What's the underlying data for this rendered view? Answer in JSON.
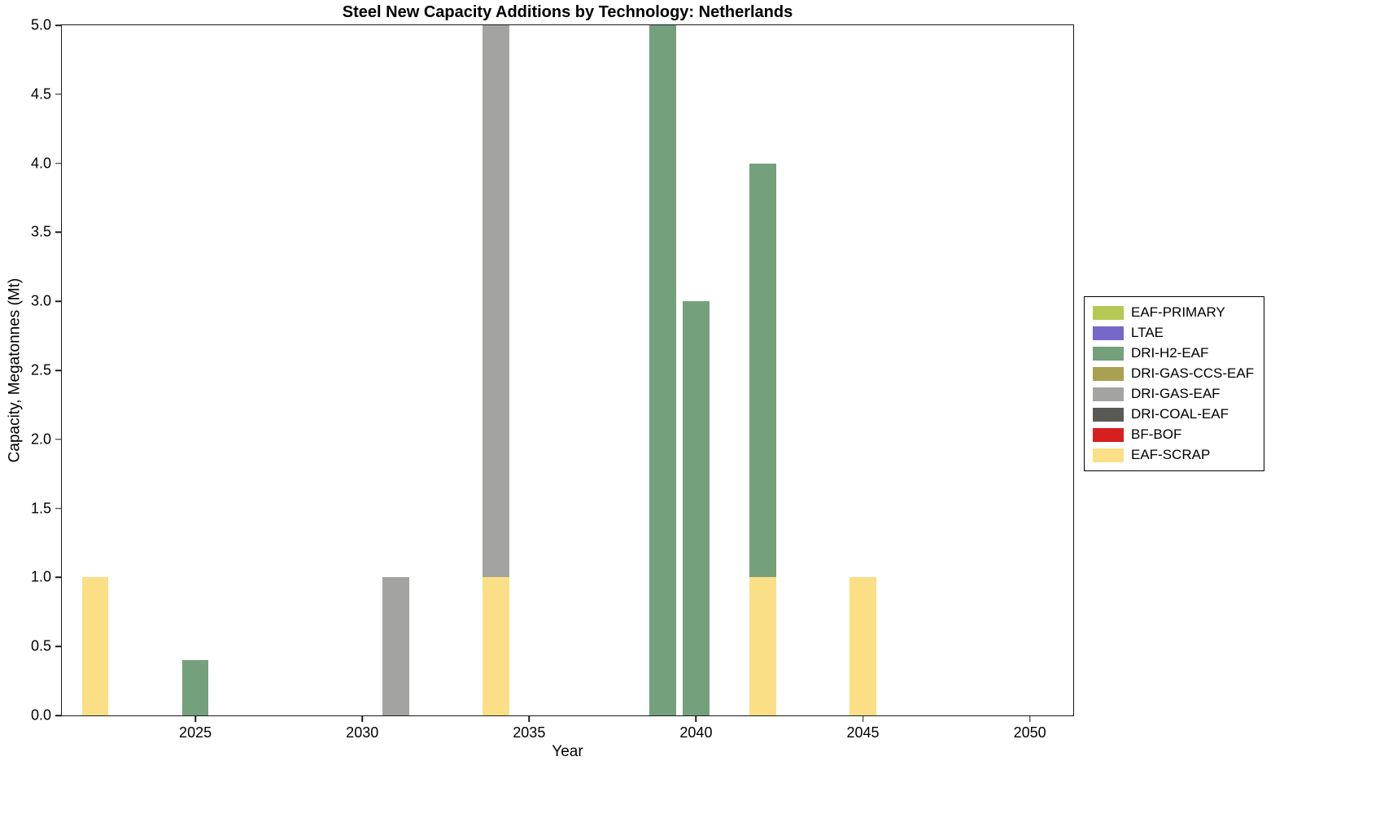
{
  "chart_data": {
    "type": "bar",
    "stacked": true,
    "title": "Steel New Capacity Additions by Technology: Netherlands",
    "xlabel": "Year",
    "ylabel": "Capacity, Megatonnes (Mt)",
    "xlim": [
      2021,
      2051.3
    ],
    "ylim": [
      0,
      5
    ],
    "bar_width_years": 0.8,
    "grid": false,
    "legend_position": "outside-right",
    "xticks": [
      2025,
      2030,
      2035,
      2040,
      2045,
      2050
    ],
    "xtick_labels": [
      "2025",
      "2030",
      "2035",
      "2040",
      "2045",
      "2050"
    ],
    "yticks": [
      0,
      0.5,
      1,
      1.5,
      2,
      2.5,
      3,
      3.5,
      4,
      4.5,
      5
    ],
    "ytick_labels": [
      "0.0",
      "0.5",
      "1.0",
      "1.5",
      "2.0",
      "2.5",
      "3.0",
      "3.5",
      "4.0",
      "4.5",
      "5.0"
    ],
    "legend": [
      {
        "label": "EAF-PRIMARY",
        "color": "#b6c954"
      },
      {
        "label": "LTAE",
        "color": "#7568c8"
      },
      {
        "label": "DRI-H2-EAF",
        "color": "#74a07c"
      },
      {
        "label": "DRI-GAS-CCS-EAF",
        "color": "#a9a052"
      },
      {
        "label": "DRI-GAS-EAF",
        "color": "#a3a3a1"
      },
      {
        "label": "DRI-COAL-EAF",
        "color": "#595955"
      },
      {
        "label": "BF-BOF",
        "color": "#d62020"
      },
      {
        "label": "EAF-SCRAP",
        "color": "#fbdf87"
      }
    ],
    "bars": [
      {
        "year": 2022,
        "segments": [
          {
            "tech": "EAF-SCRAP",
            "value": 1.0
          }
        ]
      },
      {
        "year": 2025,
        "segments": [
          {
            "tech": "DRI-H2-EAF",
            "value": 0.4
          }
        ]
      },
      {
        "year": 2031,
        "segments": [
          {
            "tech": "DRI-GAS-EAF",
            "value": 1.0
          }
        ]
      },
      {
        "year": 2034,
        "segments": [
          {
            "tech": "EAF-SCRAP",
            "value": 1.0
          },
          {
            "tech": "DRI-GAS-EAF",
            "value": 4.0
          }
        ]
      },
      {
        "year": 2039,
        "segments": [
          {
            "tech": "DRI-H2-EAF",
            "value": 5.0
          }
        ]
      },
      {
        "year": 2040,
        "segments": [
          {
            "tech": "DRI-H2-EAF",
            "value": 3.0
          }
        ]
      },
      {
        "year": 2042,
        "segments": [
          {
            "tech": "EAF-SCRAP",
            "value": 1.0
          },
          {
            "tech": "DRI-H2-EAF",
            "value": 3.0
          }
        ]
      },
      {
        "year": 2045,
        "segments": [
          {
            "tech": "EAF-SCRAP",
            "value": 1.0
          }
        ]
      }
    ]
  }
}
